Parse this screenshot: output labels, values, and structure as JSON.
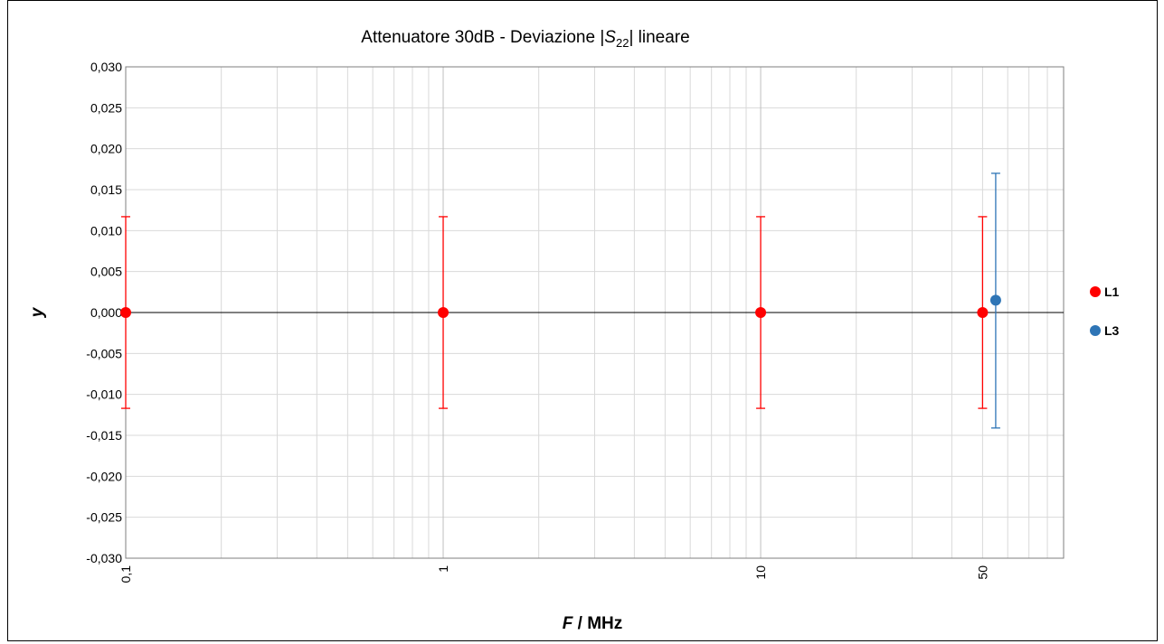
{
  "chart_data": {
    "type": "scatter",
    "title": {
      "prefix": "Attenuatore 30dB - Deviazione |",
      "symbol": "S",
      "subscript": "22",
      "suffix": "| lineare"
    },
    "xlabel": {
      "italic": "F",
      "rest": " / MHz"
    },
    "ylabel": "y",
    "x_scale": "log",
    "xlim": [
      0.1,
      90
    ],
    "ylim": [
      -0.03,
      0.03
    ],
    "x_ticks": [
      {
        "value": 0.1,
        "label": "0,1"
      },
      {
        "value": 1,
        "label": "1"
      },
      {
        "value": 10,
        "label": "10"
      },
      {
        "value": 50,
        "label": "50"
      }
    ],
    "y_ticks": [
      {
        "value": 0.03,
        "label": "0,030"
      },
      {
        "value": 0.025,
        "label": "0,025"
      },
      {
        "value": 0.02,
        "label": "0,020"
      },
      {
        "value": 0.015,
        "label": "0,015"
      },
      {
        "value": 0.01,
        "label": "0,010"
      },
      {
        "value": 0.005,
        "label": "0,005"
      },
      {
        "value": 0,
        "label": "0,000"
      },
      {
        "value": -0.005,
        "label": "-0,005"
      },
      {
        "value": -0.01,
        "label": "-0,010"
      },
      {
        "value": -0.015,
        "label": "-0,015"
      },
      {
        "value": -0.02,
        "label": "-0,020"
      },
      {
        "value": -0.025,
        "label": "-0,025"
      },
      {
        "value": -0.03,
        "label": "-0,030"
      }
    ],
    "grid": true,
    "legend_position": "right",
    "series": [
      {
        "name": "L1",
        "color": "#ff0000",
        "points": [
          {
            "x": 0.1,
            "y": 0.0,
            "err": 0.0117
          },
          {
            "x": 1,
            "y": 0.0,
            "err": 0.0117
          },
          {
            "x": 10,
            "y": 0.0,
            "err": 0.0117
          },
          {
            "x": 50,
            "y": 0.0,
            "err": 0.0117
          }
        ]
      },
      {
        "name": "L3",
        "color": "#2e75b6",
        "points": [
          {
            "x": 55,
            "y": 0.0015,
            "err_plus": 0.0155,
            "err_minus": 0.0156
          }
        ]
      }
    ]
  }
}
